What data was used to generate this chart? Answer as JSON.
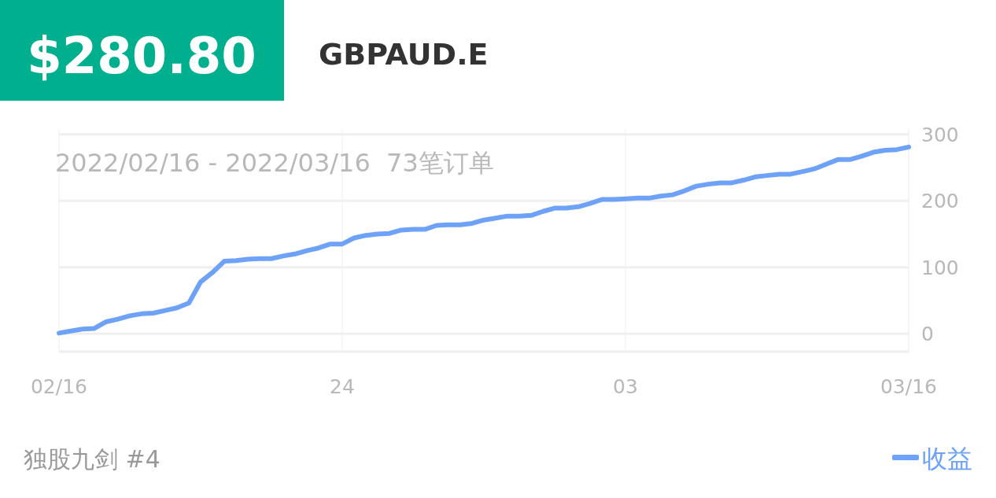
{
  "chart_data": {
    "type": "line",
    "title": "GBPAUD.E",
    "annotations": [
      "$280.80",
      "2022/02/16 - 2022/03/16  73笔订单",
      "独股九剑 #4"
    ],
    "categories": [
      "02/16",
      null,
      null,
      null,
      null,
      null,
      null,
      null,
      null,
      null,
      null,
      null,
      null,
      null,
      null,
      null,
      null,
      null,
      null,
      null,
      null,
      null,
      null,
      null,
      "24",
      null,
      null,
      null,
      null,
      null,
      null,
      null,
      null,
      null,
      null,
      null,
      null,
      null,
      null,
      null,
      null,
      null,
      null,
      null,
      null,
      null,
      null,
      null,
      "03",
      null,
      null,
      null,
      null,
      null,
      null,
      null,
      null,
      null,
      null,
      null,
      null,
      null,
      null,
      null,
      null,
      null,
      null,
      null,
      null,
      null,
      null,
      null,
      "03/16"
    ],
    "series": [
      {
        "name": "收益",
        "color": "#6ea2f8",
        "values": [
          1,
          4,
          7,
          8,
          18,
          22,
          27,
          30,
          31,
          35,
          39,
          46,
          78,
          92,
          109,
          110,
          112,
          113,
          113,
          117,
          120,
          125,
          129,
          135,
          135,
          144,
          148,
          150,
          151,
          156,
          157,
          157,
          163,
          164,
          164,
          166,
          171,
          174,
          177,
          177,
          178,
          184,
          189,
          189,
          191,
          196,
          202,
          202,
          203,
          204,
          204,
          207,
          209,
          215,
          222,
          225,
          227,
          227,
          231,
          236,
          238,
          240,
          240,
          244,
          248,
          255,
          262,
          262,
          267,
          273,
          276,
          277,
          281
        ]
      }
    ],
    "ylim": [
      -27,
      308
    ],
    "yticks": [
      0,
      100,
      200,
      300
    ],
    "grid": true,
    "legend": "bottom right",
    "marker": "none",
    "line_style": "solid"
  }
}
